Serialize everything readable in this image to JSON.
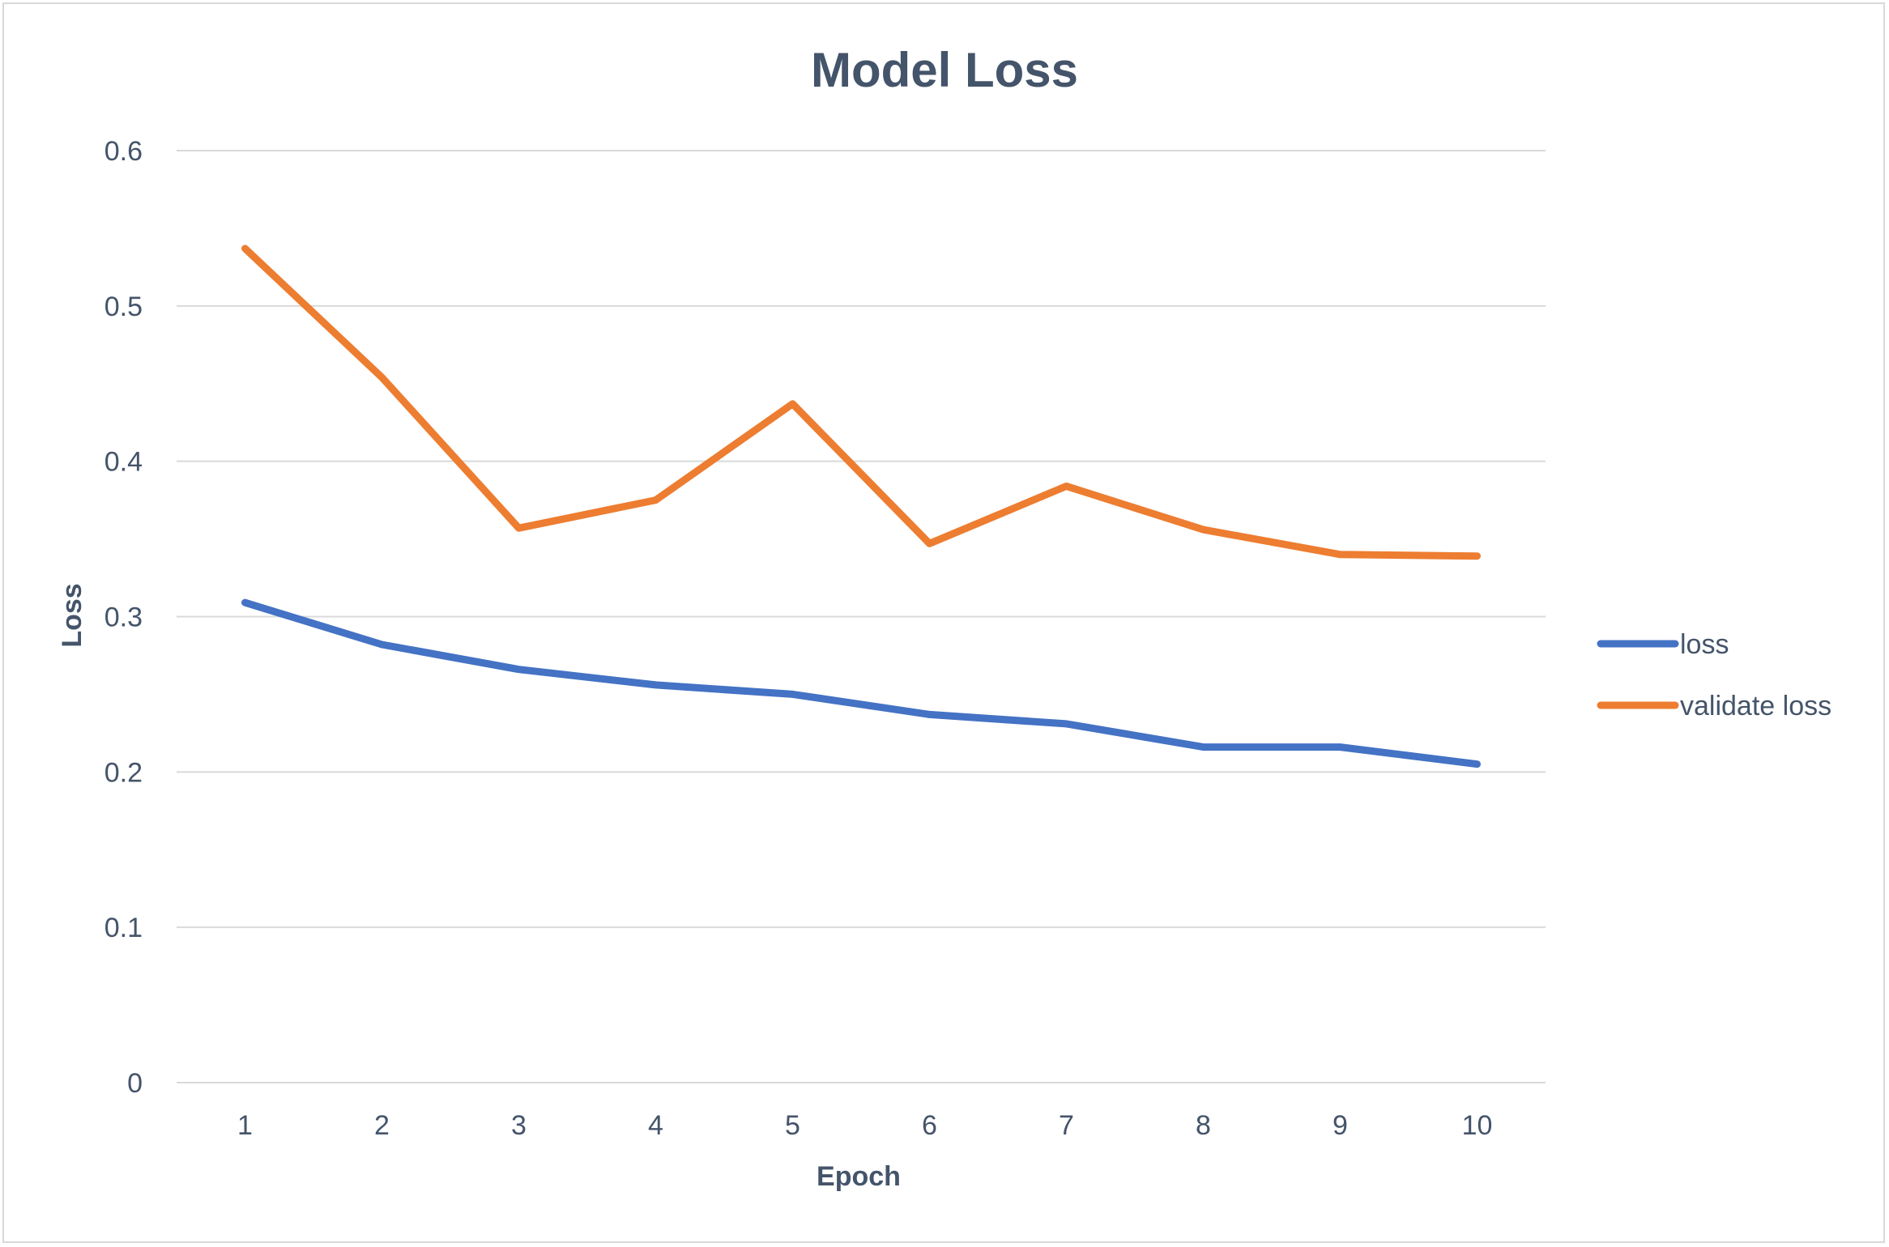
{
  "chart_data": {
    "type": "line",
    "title": "Model Loss",
    "xlabel": "Epoch",
    "ylabel": "Loss",
    "x": [
      "1",
      "2",
      "3",
      "4",
      "5",
      "6",
      "7",
      "8",
      "9",
      "10"
    ],
    "ylim": [
      0,
      0.6
    ],
    "yticks": [
      "0",
      "0.1",
      "0.2",
      "0.3",
      "0.4",
      "0.5",
      "0.6"
    ],
    "grid": true,
    "legend_position": "right",
    "series": [
      {
        "name": "loss",
        "color": "#4472c4",
        "values": [
          0.309,
          0.282,
          0.266,
          0.256,
          0.25,
          0.237,
          0.231,
          0.216,
          0.216,
          0.205
        ]
      },
      {
        "name": "validate loss",
        "color": "#ed7d31",
        "values": [
          0.537,
          0.454,
          0.357,
          0.375,
          0.437,
          0.347,
          0.384,
          0.356,
          0.34,
          0.339
        ]
      }
    ]
  }
}
